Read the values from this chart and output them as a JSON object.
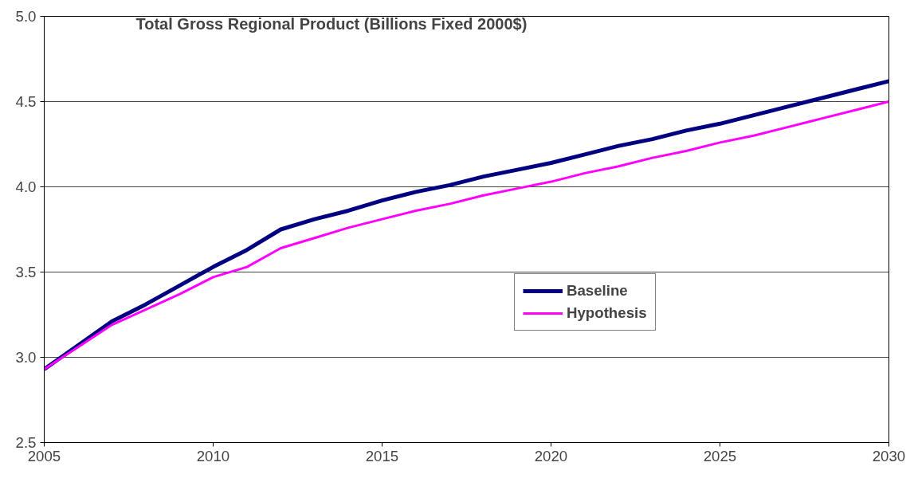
{
  "chart_data": {
    "type": "line",
    "title": "Total Gross Regional Product (Billions Fixed 2000$)",
    "x": [
      2005,
      2006,
      2007,
      2008,
      2009,
      2010,
      2011,
      2012,
      2013,
      2014,
      2015,
      2016,
      2017,
      2018,
      2019,
      2020,
      2021,
      2022,
      2023,
      2024,
      2025,
      2026,
      2027,
      2028,
      2029,
      2030
    ],
    "series": [
      {
        "name": "Baseline",
        "color": "#000080",
        "values": [
          2.93,
          3.07,
          3.21,
          3.31,
          3.42,
          3.53,
          3.63,
          3.75,
          3.81,
          3.86,
          3.92,
          3.97,
          4.01,
          4.06,
          4.1,
          4.14,
          4.19,
          4.24,
          4.28,
          4.33,
          4.37,
          4.42,
          4.47,
          4.52,
          4.57,
          4.62
        ]
      },
      {
        "name": "Hypothesis",
        "color": "#ff00ff",
        "values": [
          2.93,
          3.06,
          3.19,
          3.28,
          3.37,
          3.47,
          3.53,
          3.64,
          3.7,
          3.76,
          3.81,
          3.86,
          3.9,
          3.95,
          3.99,
          4.03,
          4.08,
          4.12,
          4.17,
          4.21,
          4.26,
          4.3,
          4.35,
          4.4,
          4.45,
          4.5
        ]
      }
    ],
    "xlim": [
      2005,
      2030
    ],
    "xticks": [
      2005,
      2010,
      2015,
      2020,
      2025,
      2030
    ],
    "ylim": [
      2.5,
      5.0
    ],
    "yticks": [
      {
        "value": 2.5,
        "label": "2.5"
      },
      {
        "value": 3.0,
        "label": "3.0"
      },
      {
        "value": 3.5,
        "label": "3.5"
      },
      {
        "value": 4.0,
        "label": "4.0"
      },
      {
        "value": 4.5,
        "label": "4.5"
      },
      {
        "value": 5.0,
        "label": "5.0"
      }
    ],
    "grid": "y",
    "legend": "right",
    "marker": "none",
    "line_style": "solid"
  }
}
